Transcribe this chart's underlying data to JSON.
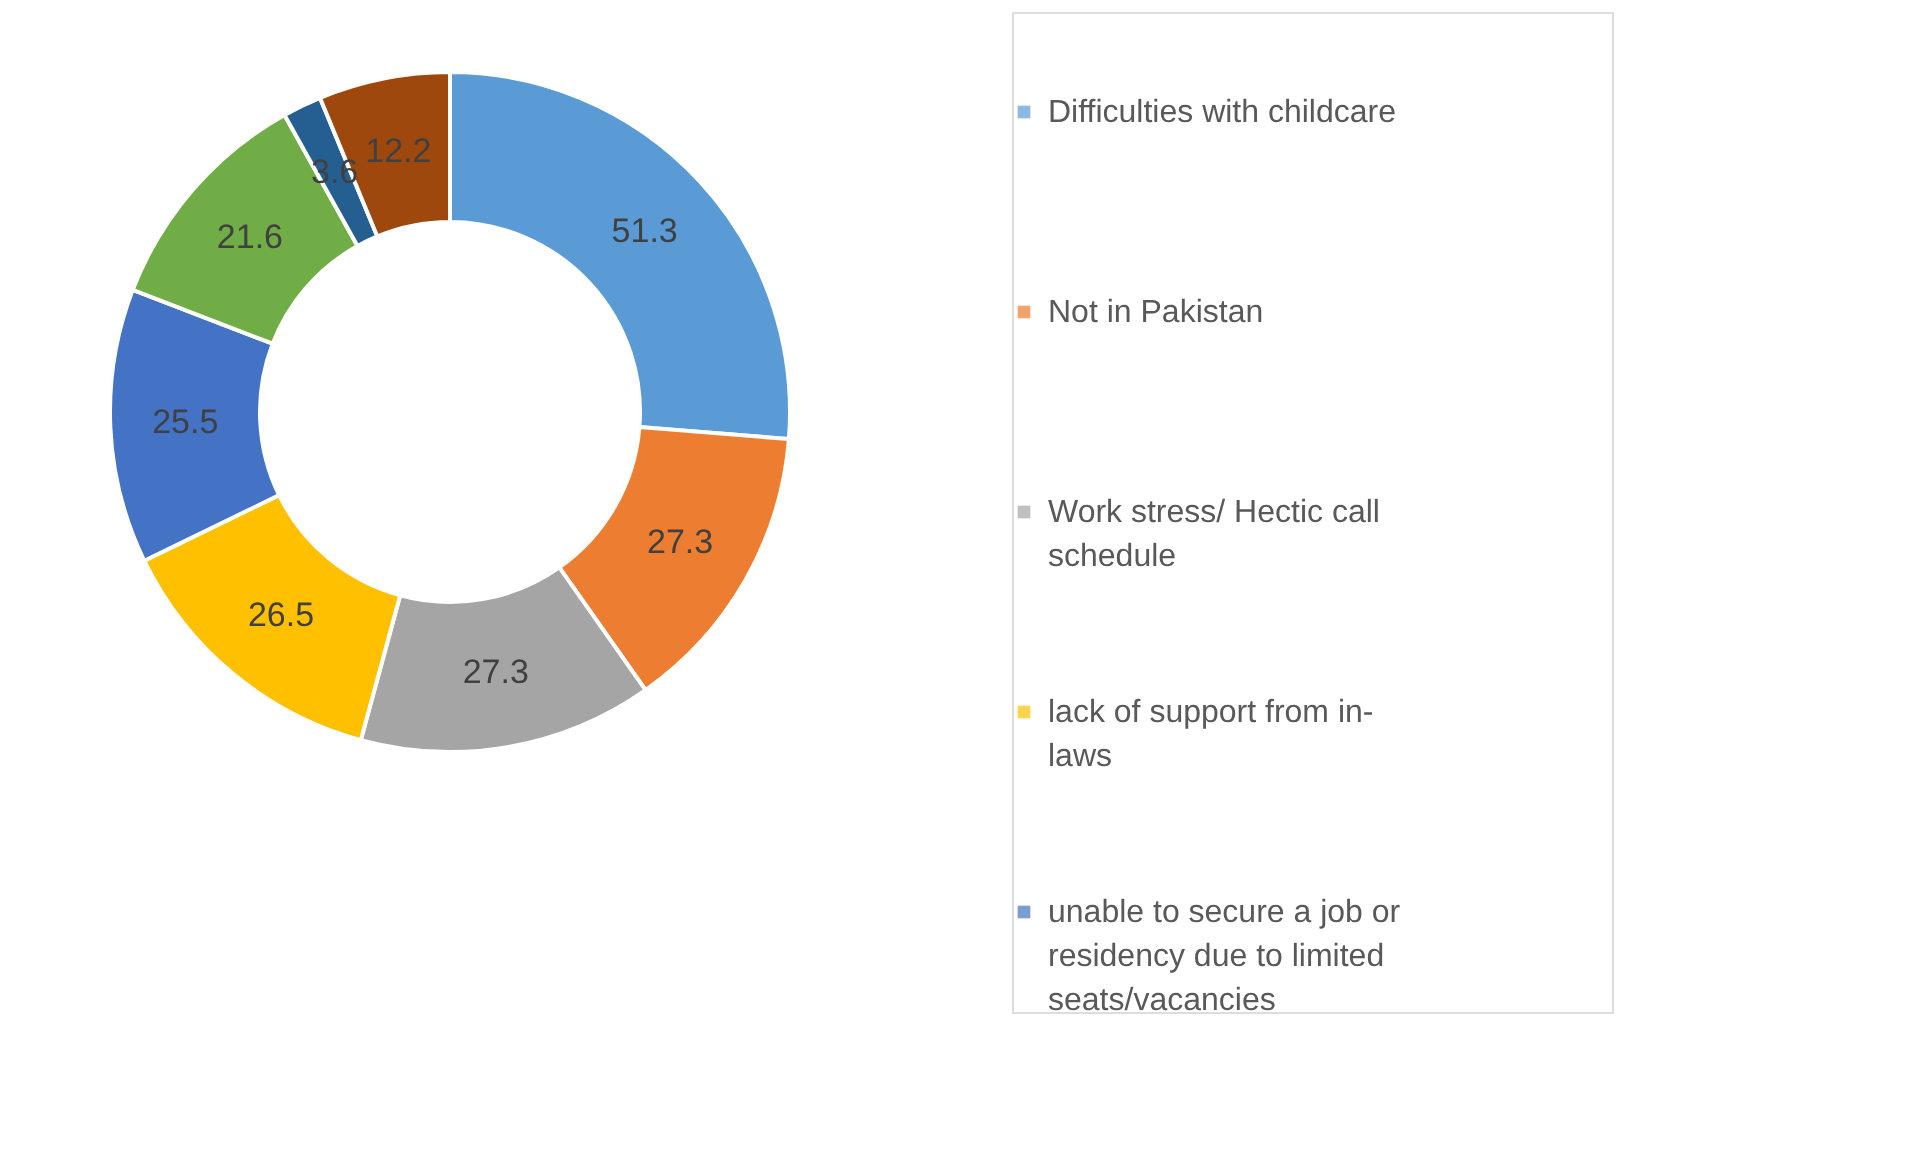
{
  "chart_data": {
    "type": "donut",
    "categories": [
      "Difficulties with childcare",
      "Not in Pakistan",
      "Work stress/ Hectic call schedule",
      "lack of support from in-laws",
      "unable to secure a job or residency due to limited seats/vacancies",
      null,
      null,
      null
    ],
    "values": [
      51.3,
      27.3,
      27.3,
      26.5,
      25.5,
      21.6,
      3.6,
      12.2
    ],
    "colors": [
      "#5b9bd5",
      "#ed7d31",
      "#a5a5a5",
      "#ffc000",
      "#4472c4",
      "#70ad47",
      "#255e91",
      "#9e480e"
    ],
    "data_labels": true,
    "legend": "right"
  }
}
